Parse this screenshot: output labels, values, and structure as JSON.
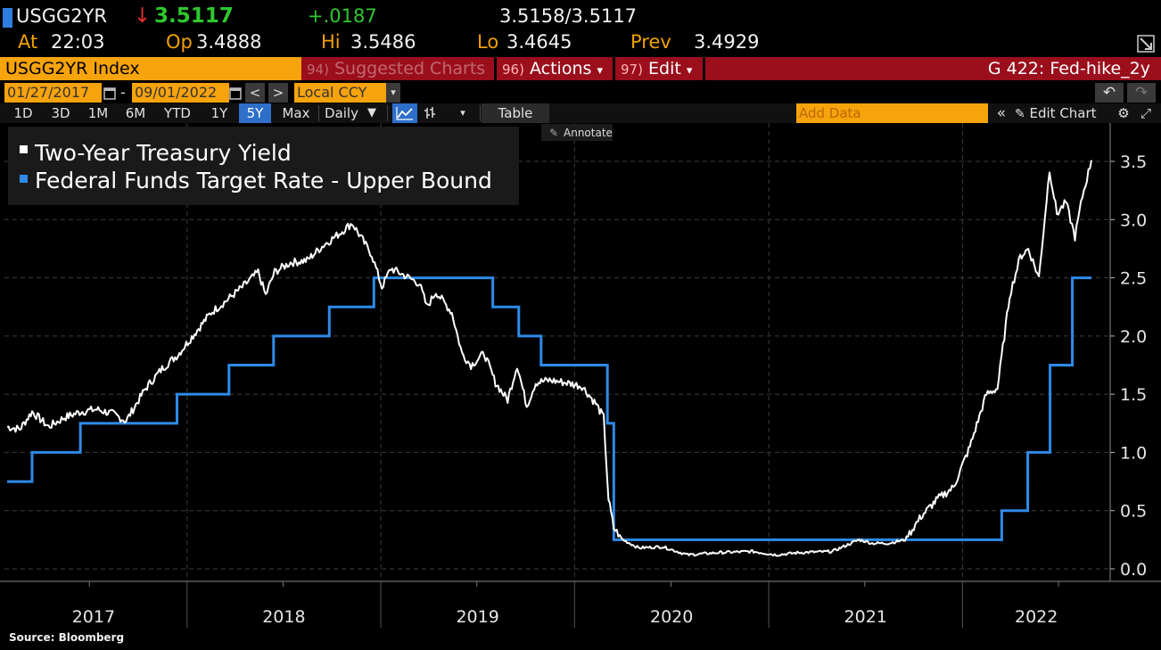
{
  "quote": {
    "ticker": "USGG2YR",
    "arrow": "↓",
    "last": "3.5117",
    "change": "+.0187",
    "bid_ask": "3.5158/3.5117",
    "at_label": "At",
    "at_time": "22:03",
    "open_label": "Op",
    "open": "3.4888",
    "high_label": "Hi",
    "high": "3.5486",
    "low_label": "Lo",
    "low": "3.4645",
    "prev_label": "Prev",
    "prev": "3.4929"
  },
  "header": {
    "security": "USGG2YR Index",
    "suggested_num": "94)",
    "suggested_label": "Suggested Charts",
    "actions_num": "96)",
    "actions_label": "Actions",
    "edit_num": "97)",
    "edit_label": "Edit",
    "chart_name": "G 422: Fed-hike_2y",
    "caret": "▾"
  },
  "dates": {
    "start": "01/27/2017",
    "end": "09/01/2022",
    "sep": "-",
    "prev_arrow": "<",
    "next_arrow": ">",
    "currency": "Local CCY",
    "undo": "↶",
    "redo": "↷"
  },
  "toolbar": {
    "periods": [
      "1D",
      "3D",
      "1M",
      "6M",
      "YTD",
      "1Y",
      "5Y",
      "Max"
    ],
    "selected_period": "5Y",
    "frequency": "Daily",
    "table": "Table",
    "add_data_placeholder": "Add Data",
    "edit_chart": "Edit Chart",
    "annotate": "Annotate"
  },
  "colors": {
    "yield": "#ffffff",
    "fed": "#2f8ae8",
    "orange": "#f7a30c",
    "red": "#9b0e1c",
    "grid": "#3a3a3a"
  },
  "chart_data": {
    "type": "line",
    "x_axis": {
      "labels": [
        "2017",
        "2018",
        "2019",
        "2020",
        "2021",
        "2022"
      ],
      "range": [
        "2017-01-27",
        "2022-09-01"
      ]
    },
    "y_axis": {
      "ticks": [
        "0.0",
        "0.5",
        "1.0",
        "1.5",
        "2.0",
        "2.5",
        "3.0",
        "3.5"
      ],
      "range": [
        -0.1,
        3.75
      ],
      "position": "right"
    },
    "legend_placement": "top-left",
    "series": [
      {
        "name": "Two-Year Treasury Yield",
        "color": "#ffffff",
        "points": [
          [
            "2017-01-27",
            1.22
          ],
          [
            "2017-02-20",
            1.2
          ],
          [
            "2017-03-15",
            1.35
          ],
          [
            "2017-04-15",
            1.22
          ],
          [
            "2017-05-15",
            1.3
          ],
          [
            "2017-06-15",
            1.35
          ],
          [
            "2017-07-15",
            1.37
          ],
          [
            "2017-08-15",
            1.33
          ],
          [
            "2017-09-08",
            1.27
          ],
          [
            "2017-10-15",
            1.55
          ],
          [
            "2017-11-15",
            1.72
          ],
          [
            "2017-12-15",
            1.84
          ],
          [
            "2018-01-15",
            2.02
          ],
          [
            "2018-02-15",
            2.2
          ],
          [
            "2018-03-15",
            2.3
          ],
          [
            "2018-04-15",
            2.42
          ],
          [
            "2018-05-15",
            2.55
          ],
          [
            "2018-05-29",
            2.35
          ],
          [
            "2018-06-15",
            2.55
          ],
          [
            "2018-07-15",
            2.63
          ],
          [
            "2018-08-15",
            2.65
          ],
          [
            "2018-09-15",
            2.78
          ],
          [
            "2018-10-15",
            2.88
          ],
          [
            "2018-11-08",
            2.97
          ],
          [
            "2018-12-01",
            2.8
          ],
          [
            "2018-12-15",
            2.7
          ],
          [
            "2019-01-03",
            2.42
          ],
          [
            "2019-01-20",
            2.58
          ],
          [
            "2019-02-15",
            2.52
          ],
          [
            "2019-03-15",
            2.45
          ],
          [
            "2019-03-29",
            2.25
          ],
          [
            "2019-04-15",
            2.38
          ],
          [
            "2019-05-15",
            2.2
          ],
          [
            "2019-06-03",
            1.85
          ],
          [
            "2019-06-20",
            1.75
          ],
          [
            "2019-07-15",
            1.85
          ],
          [
            "2019-08-05",
            1.6
          ],
          [
            "2019-08-28",
            1.45
          ],
          [
            "2019-09-15",
            1.75
          ],
          [
            "2019-10-03",
            1.4
          ],
          [
            "2019-10-20",
            1.6
          ],
          [
            "2019-11-15",
            1.62
          ],
          [
            "2019-12-15",
            1.6
          ],
          [
            "2020-01-15",
            1.57
          ],
          [
            "2020-02-10",
            1.42
          ],
          [
            "2020-02-25",
            1.3
          ],
          [
            "2020-03-05",
            0.6
          ],
          [
            "2020-03-15",
            0.35
          ],
          [
            "2020-04-01",
            0.25
          ],
          [
            "2020-05-01",
            0.18
          ],
          [
            "2020-06-15",
            0.19
          ],
          [
            "2020-08-01",
            0.12
          ],
          [
            "2020-10-01",
            0.14
          ],
          [
            "2020-12-01",
            0.15
          ],
          [
            "2021-01-15",
            0.12
          ],
          [
            "2021-03-01",
            0.14
          ],
          [
            "2021-05-01",
            0.15
          ],
          [
            "2021-06-20",
            0.25
          ],
          [
            "2021-07-15",
            0.22
          ],
          [
            "2021-08-15",
            0.22
          ],
          [
            "2021-09-15",
            0.25
          ],
          [
            "2021-10-15",
            0.45
          ],
          [
            "2021-11-15",
            0.6
          ],
          [
            "2021-12-15",
            0.7
          ],
          [
            "2022-01-15",
            1.05
          ],
          [
            "2022-02-15",
            1.5
          ],
          [
            "2022-03-08",
            1.55
          ],
          [
            "2022-03-31",
            2.35
          ],
          [
            "2022-04-20",
            2.68
          ],
          [
            "2022-05-05",
            2.75
          ],
          [
            "2022-05-25",
            2.5
          ],
          [
            "2022-06-14",
            3.43
          ],
          [
            "2022-06-28",
            3.05
          ],
          [
            "2022-07-15",
            3.15
          ],
          [
            "2022-08-01",
            2.85
          ],
          [
            "2022-08-15",
            3.2
          ],
          [
            "2022-09-01",
            3.51
          ]
        ]
      },
      {
        "name": "Federal Funds Target Rate - Upper Bound",
        "color": "#2f8ae8",
        "points": [
          [
            "2017-01-27",
            0.75
          ],
          [
            "2017-03-15",
            1.0
          ],
          [
            "2017-06-14",
            1.25
          ],
          [
            "2017-12-13",
            1.5
          ],
          [
            "2018-03-21",
            1.75
          ],
          [
            "2018-06-13",
            2.0
          ],
          [
            "2018-09-26",
            2.25
          ],
          [
            "2018-12-19",
            2.5
          ],
          [
            "2019-07-31",
            2.25
          ],
          [
            "2019-09-18",
            2.0
          ],
          [
            "2019-10-30",
            1.75
          ],
          [
            "2020-03-03",
            1.25
          ],
          [
            "2020-03-15",
            0.25
          ],
          [
            "2022-03-16",
            0.5
          ],
          [
            "2022-05-04",
            1.0
          ],
          [
            "2022-06-15",
            1.75
          ],
          [
            "2022-07-27",
            2.5
          ],
          [
            "2022-09-01",
            2.5
          ]
        ]
      }
    ]
  },
  "source": "Source: Bloomberg"
}
